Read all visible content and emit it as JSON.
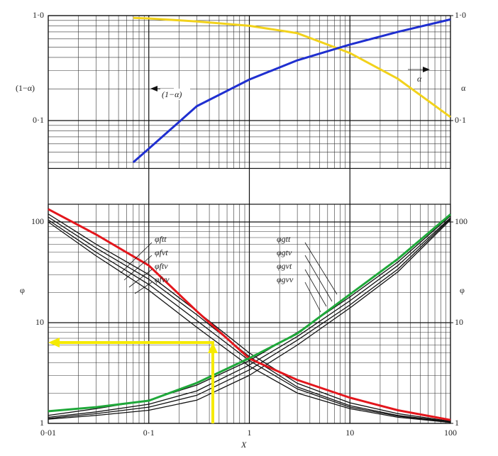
{
  "chart_data": [
    {
      "type": "line",
      "y_label": "(1−α)",
      "y2_label": "α",
      "x": [
        0.07,
        0.1,
        0.3,
        1,
        3,
        10,
        30,
        100
      ],
      "xlim": [
        0.01,
        100
      ],
      "xscale": "log",
      "ylim": [
        0.035,
        1
      ],
      "yscale": "log",
      "yticks": [
        {
          "value": 1,
          "label": "1·0"
        },
        {
          "value": 0.1,
          "label": "0·1"
        }
      ],
      "y2lim": [
        0.035,
        1
      ],
      "y2ticks": [
        {
          "value": 1,
          "label": "1·0"
        },
        {
          "value": 0.1,
          "label": "0·1"
        }
      ],
      "grid": true,
      "series": [
        {
          "color": "#f2d21b",
          "axis": "y2",
          "values": [
            0.95,
            0.94,
            0.88,
            0.8,
            0.68,
            0.44,
            0.25,
            0.108
          ]
        },
        {
          "color": "#1f2fd0",
          "values": [
            0.04,
            0.054,
            0.137,
            0.246,
            0.375,
            0.53,
            0.7,
            0.92
          ]
        }
      ],
      "annotations": [
        "(1−α)",
        "α"
      ]
    },
    {
      "type": "line",
      "y_label": "φ",
      "y2_label": "φ",
      "x_label": "X",
      "x": [
        0.01,
        0.03,
        0.1,
        0.3,
        1,
        3,
        10,
        30,
        100
      ],
      "xlim": [
        0.01,
        100
      ],
      "xscale": "log",
      "xticks": [
        {
          "value": 0.01,
          "label": "0·01"
        },
        {
          "value": 0.1,
          "label": "0·1"
        },
        1,
        10,
        100
      ],
      "ylim": [
        1,
        150
      ],
      "yscale": "log",
      "yticks": [
        100,
        10,
        1
      ],
      "y2lim": [
        1,
        150
      ],
      "y2ticks": [
        100,
        10,
        1
      ],
      "grid": true,
      "series": [
        {
          "name": "φftt",
          "color": "#111111",
          "values": [
            120,
            60,
            30,
            13,
            5.0,
            2.5,
            1.6,
            1.25,
            1.05
          ]
        },
        {
          "name": "φfvt",
          "color": "#111111",
          "values": [
            112,
            55,
            27,
            12,
            4.6,
            2.3,
            1.5,
            1.2,
            1.04
          ]
        },
        {
          "name": "φftv",
          "color": "#111111",
          "values": [
            105,
            50,
            24,
            10.5,
            4.2,
            2.2,
            1.45,
            1.18,
            1.03
          ]
        },
        {
          "name": "φfvv",
          "color": "#111111",
          "values": [
            100,
            46,
            21,
            9,
            3.7,
            2.0,
            1.4,
            1.15,
            1.02
          ]
        },
        {
          "name": "φgtt",
          "color": "#111111",
          "values": [
            1.2,
            1.4,
            1.7,
            2.4,
            4.2,
            8,
            18,
            40,
            115
          ]
        },
        {
          "name": "φgtv",
          "color": "#111111",
          "values": [
            1.15,
            1.3,
            1.55,
            2.1,
            3.8,
            7.3,
            16.5,
            37,
            110
          ]
        },
        {
          "name": "φgvt",
          "color": "#111111",
          "values": [
            1.12,
            1.25,
            1.45,
            1.9,
            3.4,
            6.7,
            15,
            34,
            108
          ]
        },
        {
          "name": "φgvv",
          "color": "#111111",
          "values": [
            1.1,
            1.2,
            1.35,
            1.7,
            3.0,
            6.0,
            14,
            32,
            105
          ]
        },
        {
          "color": "#e3161c",
          "values": [
            134,
            75,
            37,
            13,
            4.4,
            2.7,
            1.8,
            1.35,
            1.08
          ]
        },
        {
          "color": "#1fa83a",
          "values": [
            1.32,
            1.45,
            1.68,
            2.52,
            4.44,
            7.8,
            19.1,
            43,
            119
          ]
        }
      ]
    }
  ]
}
